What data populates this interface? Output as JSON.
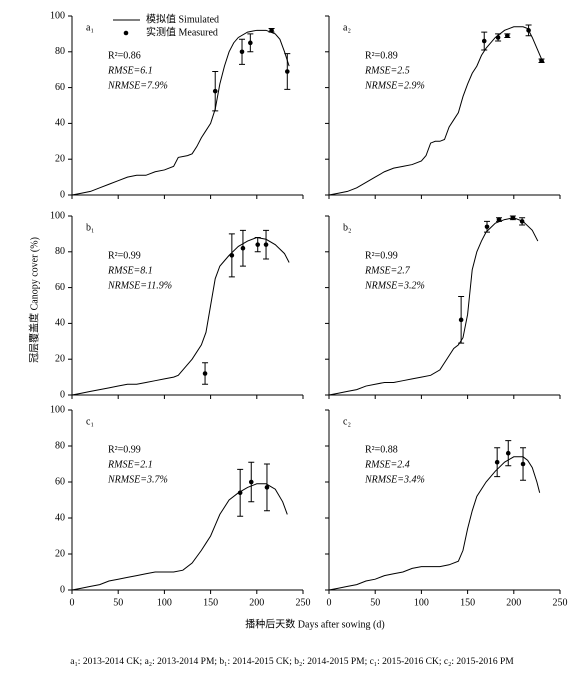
{
  "y_label": "冠层覆盖度 Canopy cover (%)",
  "x_label": "播种后天数 Days after sowing (d)",
  "caption": "a₁: 2013-2014 CK; a₂: 2013-2014 PM; b₁: 2014-2015 CK; b₂: 2014-2015 PM; c₁: 2015-2016 CK; c₂: 2015-2016 PM",
  "chart_data": [
    {
      "type": "line",
      "panel": "a₁",
      "annotations": [
        "R²=0.86",
        "RMSE=6.1",
        "NRMSE=7.9%"
      ],
      "xlim": [
        0,
        250
      ],
      "xticks": [
        0,
        50,
        100,
        150,
        200,
        250
      ],
      "ylim": [
        0,
        100
      ],
      "yticks": [
        0,
        20,
        40,
        60,
        80,
        100
      ],
      "series": [
        {
          "name": "模拟值 Simulated",
          "color": "#000000",
          "x": [
            0,
            10,
            20,
            30,
            40,
            50,
            60,
            70,
            80,
            90,
            100,
            110,
            115,
            125,
            130,
            135,
            140,
            145,
            150,
            155,
            160,
            165,
            170,
            175,
            180,
            190,
            200,
            210,
            220,
            225,
            230,
            235
          ],
          "values": [
            0,
            1,
            2,
            4,
            6,
            8,
            10,
            11,
            11,
            13,
            14,
            16,
            21,
            22,
            23,
            27,
            32,
            36,
            40,
            48,
            62,
            72,
            80,
            85,
            88,
            91,
            92,
            92,
            90,
            87,
            80,
            72
          ]
        },
        {
          "name": "实测值 Measured",
          "color": "#000000",
          "x": [
            155,
            184,
            193,
            216,
            233
          ],
          "values": [
            58,
            80,
            85,
            92,
            69
          ],
          "errors": [
            11,
            7,
            5,
            1,
            10
          ]
        }
      ]
    },
    {
      "type": "line",
      "panel": "a₂",
      "annotations": [
        "R²=0.89",
        "RMSE=2.5",
        "NRMSE=2.9%"
      ],
      "xlim": [
        0,
        250
      ],
      "xticks": [
        0,
        50,
        100,
        150,
        200,
        250
      ],
      "ylim": [
        0,
        100
      ],
      "yticks": [
        0,
        20,
        40,
        60,
        80,
        100
      ],
      "series": [
        {
          "color": "#000000",
          "x": [
            0,
            10,
            20,
            30,
            40,
            50,
            60,
            70,
            80,
            90,
            100,
            105,
            110,
            115,
            120,
            125,
            130,
            135,
            140,
            145,
            150,
            155,
            160,
            165,
            170,
            180,
            190,
            200,
            210,
            215,
            220,
            225,
            230,
            233
          ],
          "values": [
            0,
            1,
            2,
            4,
            7,
            10,
            13,
            15,
            16,
            17,
            19,
            22,
            29,
            30,
            30,
            31,
            38,
            42,
            46,
            55,
            62,
            68,
            72,
            78,
            82,
            88,
            92,
            94,
            94,
            93,
            88,
            82,
            76,
            74
          ]
        },
        {
          "color": "#000000",
          "x": [
            168,
            183,
            193,
            216,
            230
          ],
          "values": [
            86,
            88,
            89,
            92,
            75
          ],
          "errors": [
            5,
            2,
            1,
            3,
            1
          ]
        }
      ]
    },
    {
      "type": "line",
      "panel": "b₁",
      "annotations": [
        "R²=0.99",
        "RMSE=8.1",
        "NRMSE=11.9%"
      ],
      "xlim": [
        0,
        250
      ],
      "xticks": [
        0,
        50,
        100,
        150,
        200,
        250
      ],
      "ylim": [
        0,
        100
      ],
      "yticks": [
        0,
        20,
        40,
        60,
        80,
        100
      ],
      "series": [
        {
          "color": "#000000",
          "x": [
            0,
            10,
            20,
            30,
            40,
            50,
            60,
            70,
            80,
            90,
            100,
            110,
            115,
            120,
            130,
            140,
            145,
            150,
            155,
            160,
            165,
            170,
            180,
            190,
            200,
            210,
            220,
            230,
            235
          ],
          "values": [
            0,
            1,
            2,
            3,
            4,
            5,
            6,
            6,
            7,
            8,
            9,
            10,
            11,
            14,
            20,
            28,
            35,
            50,
            65,
            72,
            75,
            78,
            83,
            86,
            88,
            87,
            84,
            79,
            74
          ]
        },
        {
          "color": "#000000",
          "x": [
            144,
            173,
            185,
            201,
            210
          ],
          "values": [
            12,
            78,
            82,
            84,
            84
          ],
          "errors": [
            6,
            12,
            10,
            4,
            8
          ]
        }
      ]
    },
    {
      "type": "line",
      "panel": "b₂",
      "annotations": [
        "R²=0.99",
        "RMSE=2.7",
        "NRMSE=3.2%"
      ],
      "xlim": [
        0,
        250
      ],
      "xticks": [
        0,
        50,
        100,
        150,
        200,
        250
      ],
      "ylim": [
        0,
        100
      ],
      "yticks": [
        0,
        20,
        40,
        60,
        80,
        100
      ],
      "series": [
        {
          "color": "#000000",
          "x": [
            0,
            10,
            20,
            30,
            40,
            50,
            60,
            70,
            80,
            90,
            100,
            110,
            120,
            130,
            135,
            140,
            145,
            150,
            155,
            160,
            165,
            170,
            180,
            190,
            200,
            210,
            220,
            226
          ],
          "values": [
            0,
            1,
            2,
            3,
            5,
            6,
            7,
            7,
            8,
            9,
            10,
            11,
            14,
            22,
            26,
            28,
            32,
            45,
            70,
            80,
            86,
            91,
            96,
            98,
            99,
            97,
            92,
            86
          ]
        },
        {
          "color": "#000000",
          "x": [
            143,
            171,
            184,
            199,
            209
          ],
          "values": [
            42,
            94,
            98,
            99,
            97
          ],
          "errors": [
            13,
            3,
            1,
            1,
            2
          ]
        }
      ]
    },
    {
      "type": "line",
      "panel": "c₁",
      "annotations": [
        "R²=0.99",
        "RMSE=2.1",
        "NRMSE=3.7%"
      ],
      "xlim": [
        0,
        250
      ],
      "xticks": [
        0,
        50,
        100,
        150,
        200,
        250
      ],
      "ylim": [
        0,
        100
      ],
      "yticks": [
        0,
        20,
        40,
        60,
        80,
        100
      ],
      "series": [
        {
          "color": "#000000",
          "x": [
            0,
            10,
            20,
            30,
            40,
            50,
            60,
            70,
            80,
            90,
            100,
            110,
            120,
            130,
            140,
            145,
            150,
            155,
            160,
            170,
            180,
            190,
            200,
            210,
            220,
            228,
            233
          ],
          "values": [
            0,
            1,
            2,
            3,
            5,
            6,
            7,
            8,
            9,
            10,
            10,
            10,
            11,
            15,
            22,
            26,
            30,
            36,
            42,
            50,
            54,
            57,
            59,
            59,
            56,
            49,
            42
          ]
        },
        {
          "color": "#000000",
          "x": [
            182,
            194,
            211
          ],
          "values": [
            54,
            60,
            57
          ],
          "errors": [
            13,
            11,
            13
          ]
        }
      ]
    },
    {
      "type": "line",
      "panel": "c₂",
      "annotations": [
        "R²=0.88",
        "RMSE=2.4",
        "NRMSE=3.4%"
      ],
      "xlim": [
        0,
        250
      ],
      "xticks": [
        0,
        50,
        100,
        150,
        200,
        250
      ],
      "ylim": [
        0,
        100
      ],
      "yticks": [
        0,
        20,
        40,
        60,
        80,
        100
      ],
      "series": [
        {
          "color": "#000000",
          "x": [
            0,
            10,
            20,
            30,
            40,
            50,
            60,
            70,
            80,
            90,
            100,
            110,
            120,
            130,
            140,
            145,
            150,
            155,
            160,
            170,
            180,
            190,
            200,
            210,
            215,
            220,
            225,
            228
          ],
          "values": [
            0,
            1,
            2,
            3,
            5,
            6,
            8,
            9,
            10,
            12,
            13,
            13,
            13,
            14,
            16,
            22,
            34,
            44,
            52,
            60,
            66,
            71,
            74,
            74,
            72,
            68,
            60,
            54
          ]
        },
        {
          "color": "#000000",
          "x": [
            182,
            194,
            210
          ],
          "values": [
            71,
            76,
            70
          ],
          "errors": [
            8,
            7,
            9
          ]
        }
      ]
    }
  ]
}
